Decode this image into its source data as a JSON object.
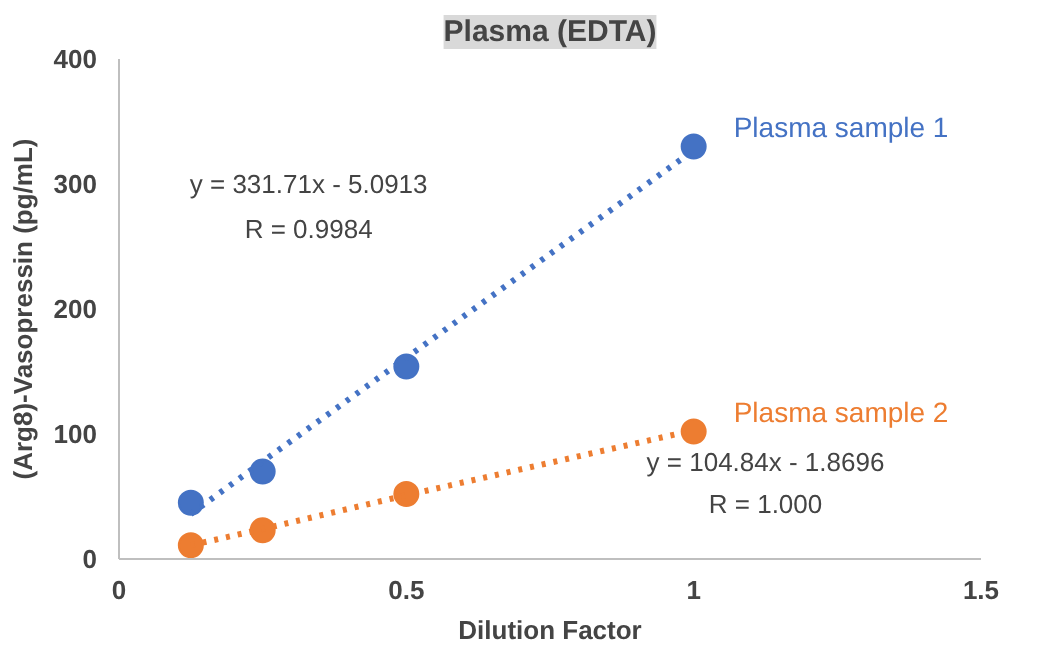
{
  "chart_data": {
    "type": "scatter",
    "title": "Plasma (EDTA)",
    "xlabel": "Dilution Factor",
    "ylabel": "(Arg8)-Vasopressin (pg/mL)",
    "x": [
      0.125,
      0.25,
      0.5,
      1
    ],
    "series": [
      {
        "name": "Plasma sample 1",
        "color": "#4472c4",
        "values": [
          45,
          70,
          154,
          330
        ],
        "marker": "circle"
      },
      {
        "name": "Plasma sample 2",
        "color": "#ed7d31",
        "values": [
          11,
          23,
          52,
          102
        ],
        "marker": "circle"
      },
      {
        "type": "line",
        "color": "#4472c4",
        "values": [
          36,
          78,
          161,
          327
        ],
        "line_style": "dotted",
        "marker": "none"
      },
      {
        "type": "line",
        "color": "#ed7d31",
        "values": [
          11,
          24,
          51,
          103
        ],
        "line_style": "dotted",
        "marker": "none"
      }
    ],
    "annotations": [
      "y = 331.71x - 5.0913",
      "R = 0.9984",
      "y = 104.84x - 1.8696",
      "R = 1.000"
    ],
    "xlim": [
      0,
      1.5
    ],
    "xticks": [
      0,
      0.5,
      1,
      1.5
    ],
    "ylim": [
      0,
      400
    ],
    "yticks": [
      0,
      100,
      200,
      300,
      400
    ],
    "grid": false
  }
}
